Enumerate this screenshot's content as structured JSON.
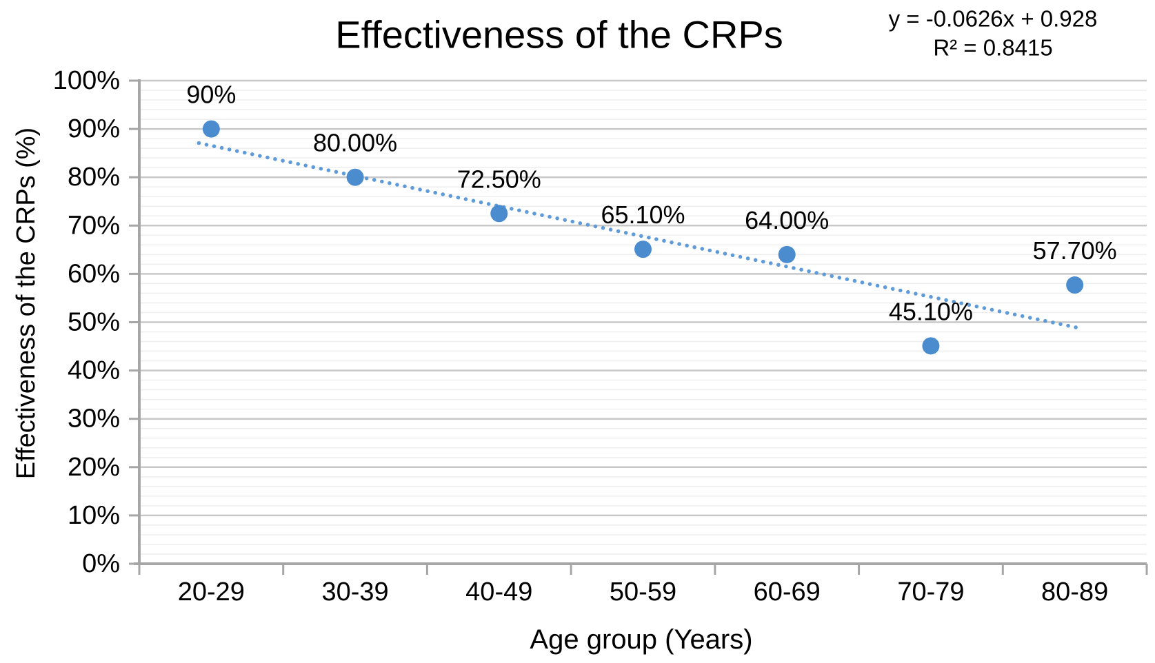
{
  "chart_data": {
    "type": "scatter",
    "title": "Effectiveness of the CRPs",
    "xlabel": "Age group (Years)",
    "ylabel": "Effectiveness of the CRPs (%)",
    "categories": [
      "20-29",
      "30-39",
      "40-49",
      "50-59",
      "60-69",
      "70-79",
      "80-89"
    ],
    "values": [
      90,
      80,
      72.5,
      65.1,
      64,
      45.1,
      57.7
    ],
    "point_labels": [
      "90%",
      "80.00%",
      "72.50%",
      "65.10%",
      "64.00%",
      "45.10%",
      "57.70%"
    ],
    "y_tick_labels": [
      "0%",
      "10%",
      "20%",
      "30%",
      "40%",
      "50%",
      "60%",
      "70%",
      "80%",
      "90%",
      "100%"
    ],
    "ylim": [
      0,
      100
    ],
    "y_major_step": 10,
    "y_minor_step": 2,
    "grid": "on",
    "legend": "none",
    "trendline": {
      "equation_label": "y = -0.0626x + 0.928",
      "r_squared_label": "R² = 0.8415",
      "slope": -0.0626,
      "intercept": 0.928,
      "style": "dotted"
    },
    "colors": {
      "marker": "#4a8cce",
      "trendline": "#5e9bd8",
      "major_grid": "#c8c8c8",
      "minor_grid": "#eeeeee",
      "axis": "#a6a6a6",
      "text": "#000000"
    }
  }
}
